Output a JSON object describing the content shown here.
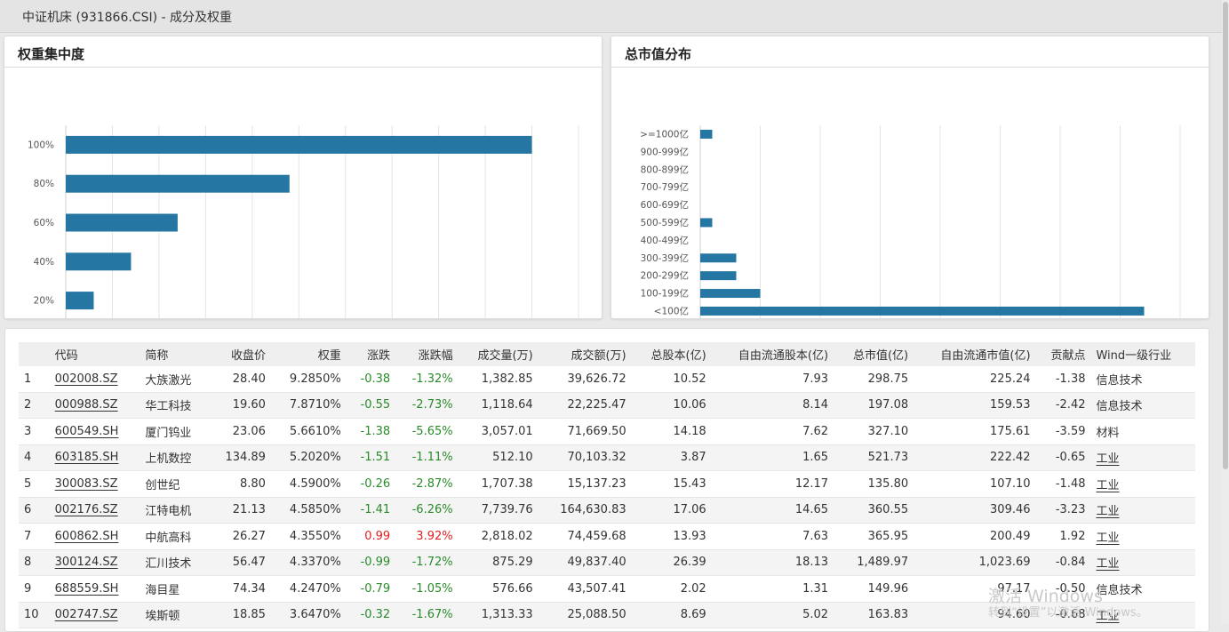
{
  "header": {
    "title": "中证机床 (931866.CSI) - 成分及权重"
  },
  "panels": {
    "concentration_title": "权重集中度",
    "mktcap_title": "总市值分布"
  },
  "chart_data": [
    {
      "type": "bar",
      "orientation": "horizontal",
      "title": "权重集中度",
      "categories": [
        "100%",
        "80%",
        "60%",
        "40%",
        "20%"
      ],
      "values": [
        50,
        24,
        12,
        7,
        3
      ],
      "xlim": [
        0,
        55
      ],
      "xticks": [
        "0",
        "5",
        "10",
        "15",
        "20",
        "25",
        "30",
        "35",
        "40",
        "45",
        "50",
        "55"
      ],
      "grid": true,
      "color": "#2676a3"
    },
    {
      "type": "bar",
      "orientation": "horizontal",
      "title": "总市值分布",
      "categories": [
        ">=1000亿",
        "900-999亿",
        "800-899亿",
        "700-799亿",
        "600-699亿",
        "500-599亿",
        "400-499亿",
        "300-399亿",
        "200-299亿",
        "100-199亿",
        "<100亿"
      ],
      "values": [
        1,
        0,
        0,
        0,
        0,
        1,
        0,
        3,
        3,
        5,
        37
      ],
      "xlim": [
        0,
        40
      ],
      "xticks": [
        "0",
        "5",
        "10",
        "15",
        "20",
        "25",
        "30",
        "35",
        "40"
      ],
      "grid": true,
      "color": "#2676a3"
    }
  ],
  "table": {
    "columns": [
      "",
      "代码",
      "简称",
      "收盘价",
      "权重",
      "涨跌",
      "涨跌幅",
      "成交量(万)",
      "成交额(万)",
      "总股本(亿)",
      "自由流通股本(亿)",
      "总市值(亿)",
      "自由流通市值(亿)",
      "贡献点",
      "Wind一级行业"
    ],
    "rows": [
      [
        "1",
        "002008.SZ",
        "大族激光",
        "28.40",
        "9.2850%",
        "-0.38",
        "-1.32%",
        "1,382.85",
        "39,626.72",
        "10.52",
        "7.93",
        "298.75",
        "225.24",
        "-1.38",
        "信息技术"
      ],
      [
        "2",
        "000988.SZ",
        "华工科技",
        "19.60",
        "7.8710%",
        "-0.55",
        "-2.73%",
        "1,118.64",
        "22,225.47",
        "10.06",
        "8.14",
        "197.08",
        "159.53",
        "-2.42",
        "信息技术"
      ],
      [
        "3",
        "600549.SH",
        "厦门钨业",
        "23.06",
        "5.6610%",
        "-1.38",
        "-5.65%",
        "3,057.01",
        "71,669.50",
        "14.18",
        "7.62",
        "327.10",
        "175.61",
        "-3.59",
        "材料"
      ],
      [
        "4",
        "603185.SH",
        "上机数控",
        "134.89",
        "5.2020%",
        "-1.51",
        "-1.11%",
        "512.10",
        "70,103.32",
        "3.87",
        "1.65",
        "521.73",
        "222.42",
        "-0.65",
        "工业"
      ],
      [
        "5",
        "300083.SZ",
        "创世纪",
        "8.80",
        "4.5900%",
        "-0.26",
        "-2.87%",
        "1,707.38",
        "15,137.23",
        "15.43",
        "12.17",
        "135.80",
        "107.10",
        "-1.48",
        "工业"
      ],
      [
        "6",
        "002176.SZ",
        "江特电机",
        "21.13",
        "4.5850%",
        "-1.41",
        "-6.26%",
        "7,739.76",
        "164,630.83",
        "17.06",
        "14.65",
        "360.55",
        "309.46",
        "-3.23",
        "工业"
      ],
      [
        "7",
        "600862.SH",
        "中航高科",
        "26.27",
        "4.3550%",
        "0.99",
        "3.92%",
        "2,818.02",
        "74,459.68",
        "13.93",
        "7.63",
        "365.95",
        "200.49",
        "1.92",
        "工业"
      ],
      [
        "8",
        "300124.SZ",
        "汇川技术",
        "56.47",
        "4.3370%",
        "-0.99",
        "-1.72%",
        "875.29",
        "49,837.40",
        "26.39",
        "18.13",
        "1,489.97",
        "1,023.69",
        "-0.84",
        "工业"
      ],
      [
        "9",
        "688559.SH",
        "海目星",
        "74.34",
        "4.2470%",
        "-0.79",
        "-1.05%",
        "576.66",
        "43,507.41",
        "2.02",
        "1.31",
        "149.96",
        "97.17",
        "-0.50",
        "信息技术"
      ],
      [
        "10",
        "002747.SZ",
        "埃斯顿",
        "18.85",
        "3.6470%",
        "-0.32",
        "-1.67%",
        "1,313.33",
        "25,088.50",
        "8.69",
        "5.02",
        "163.83",
        "94.60",
        "-0.68",
        "工业"
      ]
    ],
    "up_color": "#e02020",
    "down_color": "#2a8a2a"
  },
  "watermark": {
    "line1": "激活 Windows",
    "line2": "转到“设置”以激活 Windows。"
  }
}
